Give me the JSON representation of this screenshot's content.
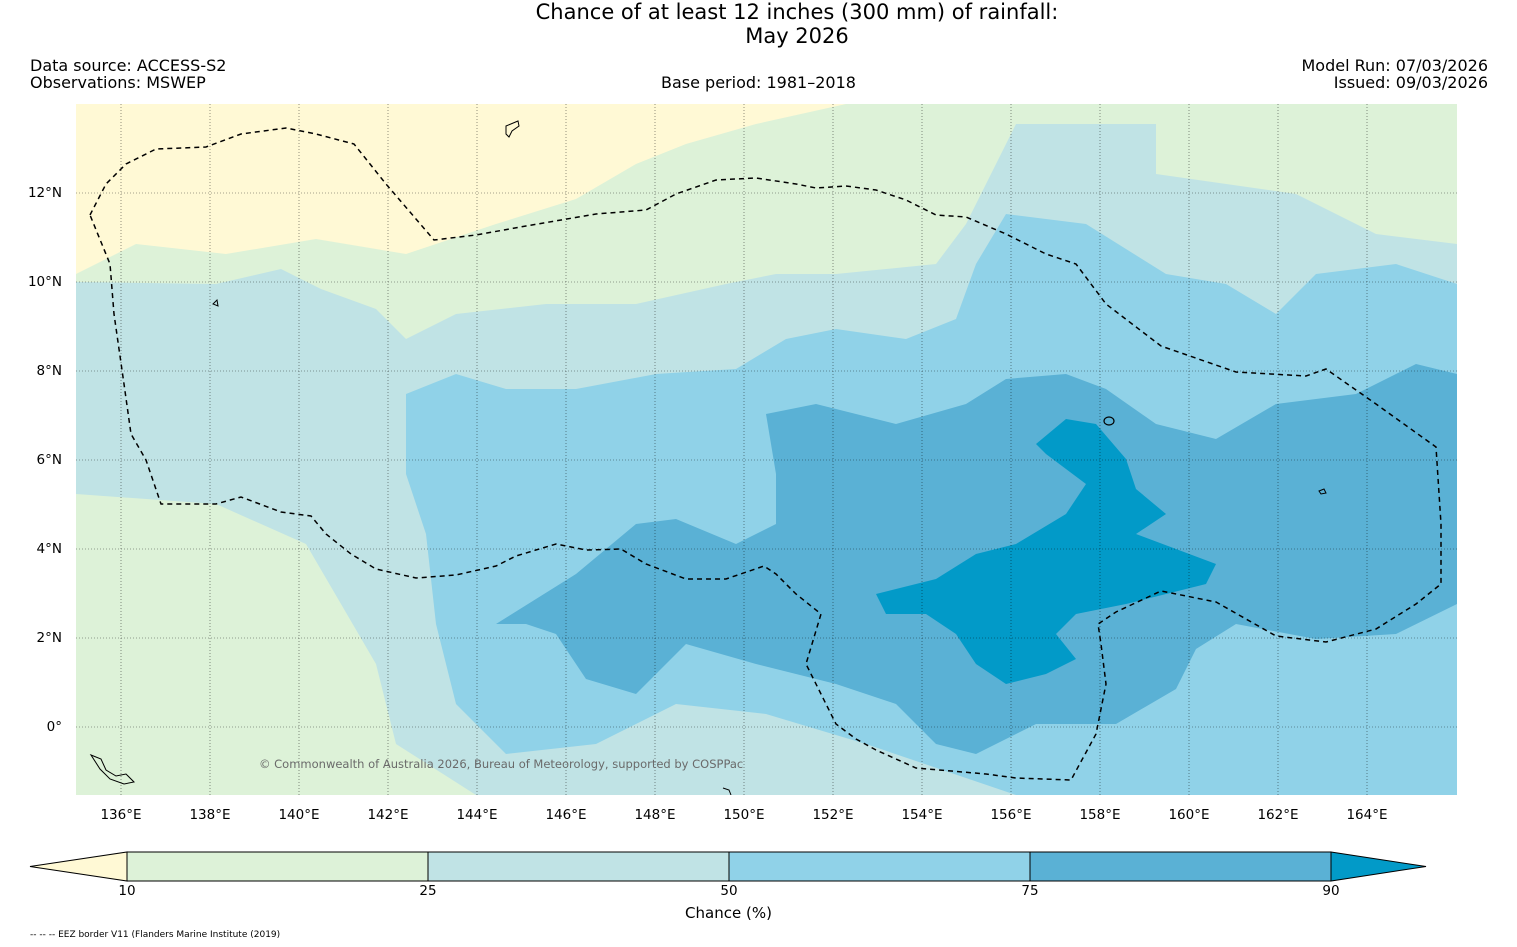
{
  "header": {
    "title_line1": "Chance of at least 12 inches (300  mm) of rainfall:",
    "title_line2": "May 2026",
    "data_source": "Data source: ACCESS-S2",
    "observations": "Observations: MSWEP",
    "base_period": "Base period: 1981–2018",
    "model_run": "Model Run: 07/03/2026",
    "issued": "Issued: 09/03/2026"
  },
  "map": {
    "lon_ticks": [
      "136°E",
      "138°E",
      "140°E",
      "142°E",
      "144°E",
      "146°E",
      "148°E",
      "150°E",
      "152°E",
      "154°E",
      "156°E",
      "158°E",
      "160°E",
      "162°E",
      "164°E"
    ],
    "lat_ticks": [
      "12°N",
      "10°N",
      "8°N",
      "6°N",
      "4°N",
      "2°N",
      "0°"
    ],
    "copyright": "© Commonwealth of Australia 2026, Bureau of Meteorology, supported by COSPPac",
    "colors": {
      "below_10": "#fff9d5",
      "band_10_25": "#ddf2d8",
      "band_25_50": "#c0e3e5",
      "band_50_75": "#90d2e8",
      "band_75_90": "#5ab1d5",
      "above_90": "#029ac8"
    }
  },
  "colorbar": {
    "labels": [
      "10",
      "25",
      "50",
      "75",
      "90"
    ],
    "title": "Chance (%)"
  },
  "footer": {
    "legend_note": "-- -- -- EEZ border V11 (Flanders Marine Institute (2019)"
  }
}
